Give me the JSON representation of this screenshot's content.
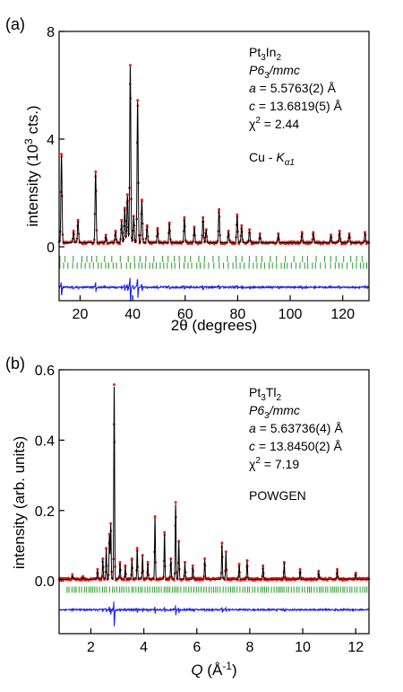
{
  "chart_data": [
    {
      "type": "line",
      "panel_label": "(a)",
      "xlabel": "2θ (degrees)",
      "ylabel_main": "intensity (10",
      "ylabel_sup": "3",
      "ylabel_end": " cts.)",
      "xlim": [
        12,
        130
      ],
      "ylim": [
        -2.0,
        8.0
      ],
      "xticks": [
        20,
        40,
        60,
        80,
        100,
        120
      ],
      "xtick_labels": [
        "20",
        "40",
        "60",
        "80",
        "100",
        "120"
      ],
      "yticks": [
        0,
        4,
        8
      ],
      "ytick_labels": [
        "0",
        "4",
        "8"
      ],
      "annotation": {
        "compound_base": "Pt",
        "compound_sub1": "3",
        "compound_mid": "In",
        "compound_sub2": "2",
        "space_group_main": "P6",
        "space_group_sub": "3",
        "space_group_end": "/mmc",
        "a_label": "a",
        "a_value": " = 5.5763(2) Å",
        "c_label": "c",
        "c_value": " = 13.6819(5) Å",
        "chi_label": "χ",
        "chi_sup": "2",
        "chi_value": " = 2.44",
        "source_main": "Cu - ",
        "source_italic": "K",
        "source_sub": "α1"
      },
      "background_level": 0.15,
      "peaks": [
        {
          "x": 12.9,
          "y": 3.4
        },
        {
          "x": 17.5,
          "y": 0.55
        },
        {
          "x": 19.2,
          "y": 0.95
        },
        {
          "x": 25.9,
          "y": 2.75
        },
        {
          "x": 29.8,
          "y": 0.4
        },
        {
          "x": 33.5,
          "y": 0.55
        },
        {
          "x": 35.8,
          "y": 0.95
        },
        {
          "x": 37.0,
          "y": 1.4
        },
        {
          "x": 38.0,
          "y": 1.9
        },
        {
          "x": 39.1,
          "y": 6.7
        },
        {
          "x": 40.4,
          "y": 1.1
        },
        {
          "x": 41.9,
          "y": 5.4
        },
        {
          "x": 43.5,
          "y": 1.7
        },
        {
          "x": 45.5,
          "y": 0.75
        },
        {
          "x": 49.5,
          "y": 0.65
        },
        {
          "x": 54.0,
          "y": 0.85
        },
        {
          "x": 59.7,
          "y": 1.05
        },
        {
          "x": 63.5,
          "y": 0.7
        },
        {
          "x": 66.8,
          "y": 1.05
        },
        {
          "x": 68.0,
          "y": 0.6
        },
        {
          "x": 72.9,
          "y": 1.35
        },
        {
          "x": 76.5,
          "y": 0.55
        },
        {
          "x": 79.8,
          "y": 1.15
        },
        {
          "x": 81.5,
          "y": 0.75
        },
        {
          "x": 84.5,
          "y": 0.6
        },
        {
          "x": 88.5,
          "y": 0.45
        },
        {
          "x": 95.5,
          "y": 0.45
        },
        {
          "x": 104.5,
          "y": 0.5
        },
        {
          "x": 108.8,
          "y": 0.5
        },
        {
          "x": 115.5,
          "y": 0.4
        },
        {
          "x": 118.8,
          "y": 0.55
        },
        {
          "x": 122.5,
          "y": 0.45
        },
        {
          "x": 128.5,
          "y": 0.5
        }
      ],
      "tick_rows_y": [
        -0.45,
        -0.7
      ],
      "difference_baseline": -1.5,
      "series_colors": {
        "observed": "#e8211c",
        "calculated": "#000000",
        "bragg_ticks": "#2a9a2a",
        "difference": "#1f22e6"
      }
    },
    {
      "type": "line",
      "panel_label": "(b)",
      "xlabel_italic": "Q",
      "xlabel_rest": " (Å",
      "xlabel_sup": "-1",
      "xlabel_end": ")",
      "ylabel": "intensity (arb. units)",
      "xlim": [
        0.8,
        12.5
      ],
      "ylim": [
        -0.15,
        0.6
      ],
      "xticks": [
        2,
        4,
        6,
        8,
        10,
        12
      ],
      "xtick_labels": [
        "2",
        "4",
        "6",
        "8",
        "10",
        "12"
      ],
      "yticks": [
        0.0,
        0.2,
        0.4,
        0.6
      ],
      "ytick_labels": [
        "0.0",
        "0.2",
        "0.4",
        "0.6"
      ],
      "annotation": {
        "compound_base": "Pt",
        "compound_sub1": "3",
        "compound_mid": "Tl",
        "compound_sub2": "2",
        "space_group_main": "P6",
        "space_group_sub": "3",
        "space_group_end": "/mmc",
        "a_label": "a",
        "a_value": " = 5.63736(4) Å",
        "c_label": "c",
        "c_value": " = 13.8450(2) Å",
        "chi_label": "χ",
        "chi_sup": "2",
        "chi_value": " = 7.19",
        "source": "POWGEN"
      },
      "background_level": 0.005,
      "peaks": [
        {
          "x": 1.3,
          "y": 0.015
        },
        {
          "x": 1.7,
          "y": 0.01
        },
        {
          "x": 2.25,
          "y": 0.03
        },
        {
          "x": 2.45,
          "y": 0.06
        },
        {
          "x": 2.58,
          "y": 0.09
        },
        {
          "x": 2.7,
          "y": 0.13
        },
        {
          "x": 2.75,
          "y": 0.16
        },
        {
          "x": 2.88,
          "y": 0.555
        },
        {
          "x": 3.1,
          "y": 0.05
        },
        {
          "x": 3.3,
          "y": 0.04
        },
        {
          "x": 3.55,
          "y": 0.06
        },
        {
          "x": 3.75,
          "y": 0.09
        },
        {
          "x": 3.95,
          "y": 0.07
        },
        {
          "x": 4.15,
          "y": 0.05
        },
        {
          "x": 4.42,
          "y": 0.18
        },
        {
          "x": 4.78,
          "y": 0.135
        },
        {
          "x": 5.02,
          "y": 0.06
        },
        {
          "x": 5.2,
          "y": 0.22
        },
        {
          "x": 5.32,
          "y": 0.11
        },
        {
          "x": 5.55,
          "y": 0.05
        },
        {
          "x": 5.85,
          "y": 0.04
        },
        {
          "x": 6.3,
          "y": 0.06
        },
        {
          "x": 6.95,
          "y": 0.105
        },
        {
          "x": 7.1,
          "y": 0.08
        },
        {
          "x": 7.6,
          "y": 0.045
        },
        {
          "x": 7.9,
          "y": 0.055
        },
        {
          "x": 8.5,
          "y": 0.04
        },
        {
          "x": 9.3,
          "y": 0.05
        },
        {
          "x": 9.9,
          "y": 0.03
        },
        {
          "x": 10.6,
          "y": 0.025
        },
        {
          "x": 11.3,
          "y": 0.03
        },
        {
          "x": 12.0,
          "y": 0.02
        }
      ],
      "tick_rows_y": [
        -0.025
      ],
      "difference_baseline": -0.082,
      "series_colors": {
        "observed": "#e8211c",
        "calculated": "#000000",
        "bragg_ticks": "#2a9a2a",
        "difference": "#1f22e6"
      }
    }
  ]
}
